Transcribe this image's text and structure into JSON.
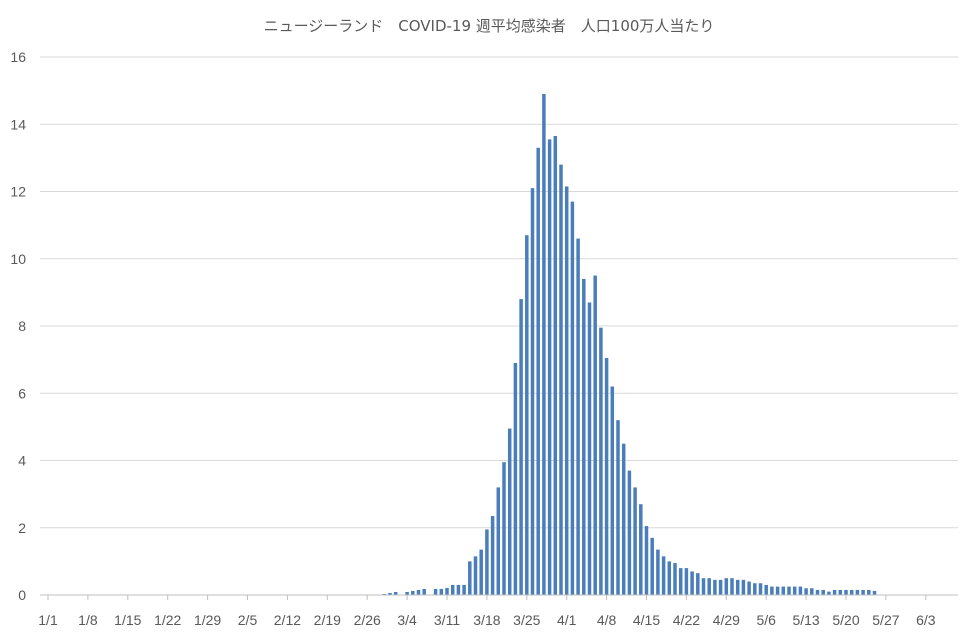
{
  "chart_data": {
    "type": "bar",
    "title": "ニュージーランド　COVID-19 週平均感染者　人口100万人当たり",
    "xlabel": "",
    "ylabel": "",
    "ylim": [
      0,
      16
    ],
    "y_ticks": [
      "0",
      "2",
      "4",
      "6",
      "8",
      "10",
      "12",
      "14",
      "16"
    ],
    "x_tick_labels": [
      "1/1",
      "1/8",
      "1/15",
      "1/22",
      "1/29",
      "2/5",
      "2/12",
      "2/19",
      "2/26",
      "3/4",
      "3/11",
      "3/18",
      "3/25",
      "4/1",
      "4/8",
      "4/15",
      "4/22",
      "4/29",
      "5/6",
      "5/13",
      "5/20",
      "5/27",
      "6/3"
    ],
    "grid": true,
    "legend": "none",
    "bar_color": "#4a7ebb",
    "start_date": "2020-01-01",
    "values": [
      0,
      0,
      0,
      0,
      0,
      0,
      0,
      0,
      0,
      0,
      0,
      0,
      0,
      0,
      0,
      0,
      0,
      0,
      0,
      0,
      0,
      0,
      0,
      0,
      0,
      0,
      0,
      0,
      0,
      0,
      0,
      0,
      0,
      0,
      0,
      0,
      0,
      0,
      0,
      0,
      0,
      0,
      0,
      0,
      0,
      0,
      0,
      0,
      0,
      0,
      0,
      0,
      0,
      0,
      0,
      0,
      0,
      0,
      0,
      0.03,
      0.06,
      0.09,
      0.0,
      0.09,
      0.12,
      0.15,
      0.18,
      0.0,
      0.18,
      0.18,
      0.21,
      0.3,
      0.3,
      0.3,
      1.0,
      1.15,
      1.35,
      1.95,
      2.35,
      3.2,
      3.95,
      4.95,
      6.9,
      8.8,
      10.7,
      12.1,
      13.3,
      14.9,
      13.55,
      13.65,
      12.8,
      12.15,
      11.7,
      10.6,
      9.4,
      8.7,
      9.5,
      7.95,
      7.05,
      6.2,
      5.2,
      4.5,
      3.7,
      3.2,
      2.7,
      2.05,
      1.7,
      1.35,
      1.15,
      1.0,
      0.95,
      0.8,
      0.8,
      0.7,
      0.65,
      0.5,
      0.5,
      0.45,
      0.45,
      0.5,
      0.5,
      0.45,
      0.45,
      0.4,
      0.35,
      0.35,
      0.3,
      0.25,
      0.25,
      0.25,
      0.25,
      0.25,
      0.25,
      0.2,
      0.2,
      0.15,
      0.15,
      0.1,
      0.15,
      0.15,
      0.15,
      0.15,
      0.15,
      0.15,
      0.15,
      0.12
    ]
  }
}
